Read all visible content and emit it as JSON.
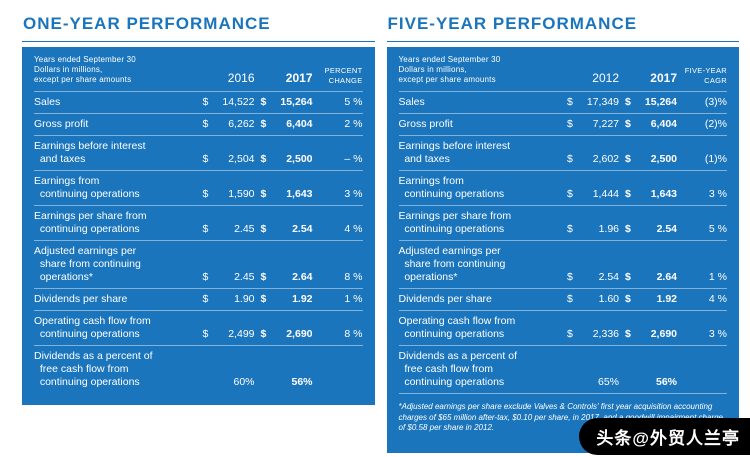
{
  "page": {
    "watermark": "头条@外贸人兰亭"
  },
  "panels": [
    {
      "title": "ONE-YEAR PERFORMANCE",
      "note": "Years ended September 30\nDollars in millions,\nexcept per share amounts",
      "col_year_1": "2016",
      "col_year_2": "2017",
      "col_change": "PERCENT\nCHANGE",
      "rows": [
        {
          "label": "Sales",
          "cur1": "$",
          "v1": "14,522",
          "cur2": "$",
          "v2": "15,264",
          "chg": "5 %"
        },
        {
          "label": "Gross profit",
          "cur1": "$",
          "v1": "6,262",
          "cur2": "$",
          "v2": "6,404",
          "chg": "2 %"
        },
        {
          "label": "Earnings before interest\n  and taxes",
          "cur1": "$",
          "v1": "2,504",
          "cur2": "$",
          "v2": "2,500",
          "chg": "– %"
        },
        {
          "label": "Earnings from\n  continuing operations",
          "cur1": "$",
          "v1": "1,590",
          "cur2": "$",
          "v2": "1,643",
          "chg": "3 %"
        },
        {
          "label": "Earnings per share from\n  continuing operations",
          "cur1": "$",
          "v1": "2.45",
          "cur2": "$",
          "v2": "2.54",
          "chg": "4 %"
        },
        {
          "label": "Adjusted earnings per\n  share from continuing\n  operations*",
          "cur1": "$",
          "v1": "2.45",
          "cur2": "$",
          "v2": "2.64",
          "chg": "8 %"
        },
        {
          "label": "Dividends per share",
          "cur1": "$",
          "v1": "1.90",
          "cur2": "$",
          "v2": "1.92",
          "chg": "1 %"
        },
        {
          "label": "Operating cash flow from\n  continuing operations",
          "cur1": "$",
          "v1": "2,499",
          "cur2": "$",
          "v2": "2,690",
          "chg": "8 %"
        },
        {
          "label": "Dividends as a percent of\n  free cash flow from\n  continuing operations",
          "cur1": "",
          "v1": "60%",
          "cur2": "",
          "v2": "56%",
          "chg": ""
        }
      ],
      "footnote": ""
    },
    {
      "title": "FIVE-YEAR PERFORMANCE",
      "note": "Years ended September 30\nDollars in millions,\nexcept per share amounts",
      "col_year_1": "2012",
      "col_year_2": "2017",
      "col_change": "FIVE-YEAR\nCAGR",
      "rows": [
        {
          "label": "Sales",
          "cur1": "$",
          "v1": "17,349",
          "cur2": "$",
          "v2": "15,264",
          "chg": "(3)%"
        },
        {
          "label": "Gross profit",
          "cur1": "$",
          "v1": "7,227",
          "cur2": "$",
          "v2": "6,404",
          "chg": "(2)%"
        },
        {
          "label": "Earnings before interest\n  and taxes",
          "cur1": "$",
          "v1": "2,602",
          "cur2": "$",
          "v2": "2,500",
          "chg": "(1)%"
        },
        {
          "label": "Earnings from\n  continuing operations",
          "cur1": "$",
          "v1": "1,444",
          "cur2": "$",
          "v2": "1,643",
          "chg": "3 %"
        },
        {
          "label": "Earnings per share from\n  continuing operations",
          "cur1": "$",
          "v1": "1.96",
          "cur2": "$",
          "v2": "2.54",
          "chg": "5 %"
        },
        {
          "label": "Adjusted earnings per\n  share from continuing\n  operations*",
          "cur1": "$",
          "v1": "2.54",
          "cur2": "$",
          "v2": "2.64",
          "chg": "1 %"
        },
        {
          "label": "Dividends per share",
          "cur1": "$",
          "v1": "1.60",
          "cur2": "$",
          "v2": "1.92",
          "chg": "4 %"
        },
        {
          "label": "Operating cash flow from\n  continuing operations",
          "cur1": "$",
          "v1": "2,336",
          "cur2": "$",
          "v2": "2,690",
          "chg": "3 %"
        },
        {
          "label": "Dividends as a percent of\n  free cash flow from\n  continuing operations",
          "cur1": "",
          "v1": "65%",
          "cur2": "",
          "v2": "56%",
          "chg": ""
        }
      ],
      "footnote": "*Adjusted earnings per share exclude Valves & Controls' first year acquisition accounting charges of $65 million after-tax, $0.10 per share, in 2017, and a goodwill impairment charge of $0.58 per share in 2012."
    }
  ]
}
